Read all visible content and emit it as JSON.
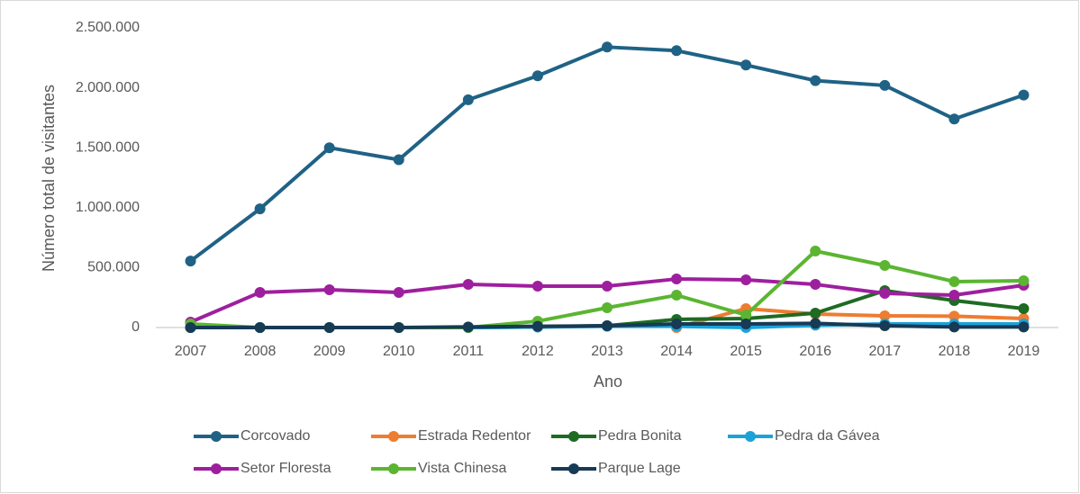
{
  "chart_data": {
    "type": "line",
    "x_label": "Ano",
    "y_label": "Número total de visitantes",
    "categories": [
      "2007",
      "2008",
      "2009",
      "2010",
      "2011",
      "2012",
      "2013",
      "2014",
      "2015",
      "2016",
      "2017",
      "2018",
      "2019"
    ],
    "series": [
      {
        "name": "Corcovado",
        "color": "#1f6285",
        "values": [
          555000,
          990000,
          1500000,
          1400000,
          1900000,
          2100000,
          2340000,
          2310000,
          2190000,
          2060000,
          2020000,
          1740000,
          1940000
        ]
      },
      {
        "name": "Estrada Redentor",
        "color": "#ed7d31",
        "values": [
          null,
          null,
          null,
          null,
          null,
          null,
          null,
          0,
          158000,
          113000,
          98000,
          95000,
          75000
        ]
      },
      {
        "name": "Pedra Bonita",
        "color": "#1e6b23",
        "values": [
          0,
          0,
          0,
          0,
          0,
          5000,
          15000,
          68000,
          75000,
          120000,
          308000,
          225000,
          158000
        ]
      },
      {
        "name": "Pedra da Gávea",
        "color": "#1ba3d9",
        "values": [
          0,
          0,
          0,
          0,
          0,
          5000,
          10000,
          10000,
          0,
          20000,
          30000,
          30000,
          30000
        ]
      },
      {
        "name": "Setor Floresta",
        "color": "#9e1f9e",
        "values": [
          45000,
          293000,
          315000,
          293000,
          360000,
          345000,
          345000,
          405000,
          398000,
          360000,
          285000,
          270000,
          353000
        ]
      },
      {
        "name": "Vista Chinesa",
        "color": "#5bb531",
        "values": [
          30000,
          0,
          0,
          0,
          0,
          53000,
          165000,
          270000,
          105000,
          638000,
          518000,
          383000,
          390000
        ]
      },
      {
        "name": "Parque Lage",
        "color": "#173a55",
        "values": [
          0,
          0,
          0,
          0,
          5000,
          10000,
          15000,
          30000,
          30000,
          35000,
          15000,
          5000,
          5000
        ]
      }
    ],
    "ylim": [
      0,
      2500000
    ],
    "yticks": [
      0,
      {
        "value": 500000,
        "label": "500.000"
      },
      {
        "value": 1000000,
        "label": "1.000.000"
      },
      {
        "value": 1500000,
        "label": "1.500.000"
      },
      {
        "value": 2000000,
        "label": "2.000.000"
      },
      {
        "value": 2500000,
        "label": "2.500.000"
      }
    ],
    "grid": false
  }
}
